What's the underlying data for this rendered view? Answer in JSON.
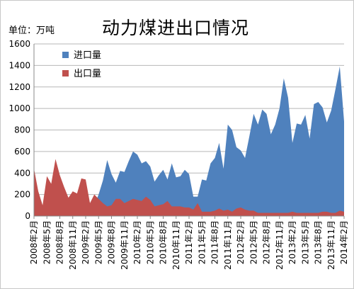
{
  "chart_data": {
    "type": "area",
    "title": "动力煤进出口情况",
    "unit_label": "单位：万吨",
    "ylim": [
      0,
      1600
    ],
    "yticks": [
      0,
      200,
      400,
      600,
      800,
      1000,
      1200,
      1400,
      1600
    ],
    "grid": true,
    "legend_position": "top-left",
    "x_start": "2008年2月",
    "x_tick_labels": [
      "2008年2月",
      "2008年5月",
      "2008年8月",
      "2008年11月",
      "2009年2月",
      "2009年5月",
      "2009年8月",
      "2009年11月",
      "2010年2月",
      "2010年5月",
      "2010年8月",
      "2010年11月",
      "2011年2月",
      "2011年5月",
      "2011年8月",
      "2011年11月",
      "2012年2月",
      "2012年5月",
      "2012年8月",
      "2012年11月",
      "2013年2月",
      "2013年5月",
      "2013年8月",
      "2013年11月",
      "2014年2月"
    ],
    "series": [
      {
        "name": "进口量",
        "color": "#4f81bd",
        "values": [
          0,
          0,
          0,
          0,
          0,
          0,
          0,
          0,
          0,
          0,
          0,
          0,
          0,
          0,
          100,
          200,
          330,
          520,
          390,
          310,
          420,
          410,
          510,
          600,
          570,
          490,
          510,
          460,
          320,
          380,
          430,
          340,
          490,
          360,
          370,
          430,
          390,
          180,
          180,
          340,
          330,
          490,
          540,
          680,
          440,
          850,
          800,
          640,
          610,
          540,
          740,
          950,
          850,
          990,
          950,
          760,
          850,
          1000,
          1280,
          1100,
          680,
          860,
          850,
          940,
          720,
          1040,
          1060,
          1010,
          870,
          980,
          1180,
          1390,
          880
        ]
      },
      {
        "name": "出口量",
        "color": "#c0504d",
        "values": [
          440,
          230,
          100,
          370,
          300,
          530,
          380,
          270,
          170,
          230,
          210,
          350,
          340,
          120,
          200,
          160,
          120,
          90,
          100,
          160,
          160,
          120,
          140,
          160,
          150,
          140,
          180,
          150,
          90,
          100,
          110,
          140,
          90,
          90,
          90,
          80,
          80,
          60,
          120,
          40,
          40,
          40,
          50,
          70,
          50,
          60,
          40,
          70,
          80,
          60,
          50,
          50,
          30,
          30,
          30,
          30,
          30,
          30,
          30,
          30,
          40,
          30,
          30,
          30,
          30,
          30,
          30,
          40,
          40,
          30,
          30,
          50,
          40
        ]
      }
    ]
  }
}
